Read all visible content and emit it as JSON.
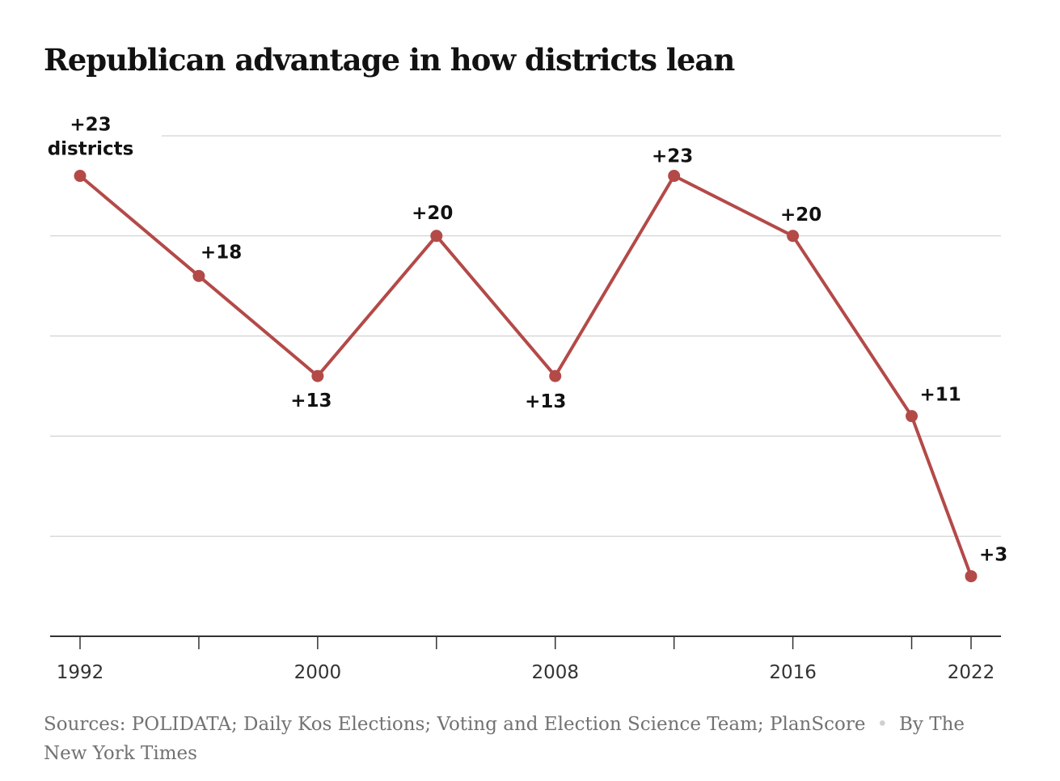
{
  "title": "Republican advantage in how districts lean",
  "chart_data": {
    "type": "line",
    "title": "Republican advantage in how districts lean",
    "xlabel": "",
    "ylabel": "",
    "x": [
      1992,
      1996,
      2000,
      2004,
      2008,
      2012,
      2016,
      2020,
      2022
    ],
    "values": [
      23,
      18,
      13,
      20,
      13,
      23,
      20,
      11,
      3
    ],
    "point_labels": [
      "+23",
      "+18",
      "+13",
      "+20",
      "+13",
      "+23",
      "+20",
      "+11",
      "+3"
    ],
    "first_label_unit": "districts",
    "x_ticks": [
      1992,
      1996,
      2000,
      2004,
      2008,
      2012,
      2016,
      2020,
      2022
    ],
    "x_tick_labels": [
      "1992",
      "2000",
      "2008",
      "2016",
      "2022"
    ],
    "xlim": [
      1992,
      2022
    ],
    "ylim": [
      0,
      25
    ],
    "gridlines_y": [
      5,
      10,
      15,
      20,
      25
    ],
    "grid": true,
    "line_color": "#b34a48",
    "gridline_color": "#c8c8c8",
    "axis_color": "#333333"
  },
  "footer": {
    "sources": "Sources: POLIDATA; Daily Kos Elections; Voting and Election Science Team; PlanScore",
    "separator": "•",
    "byline": "By The New York Times"
  }
}
